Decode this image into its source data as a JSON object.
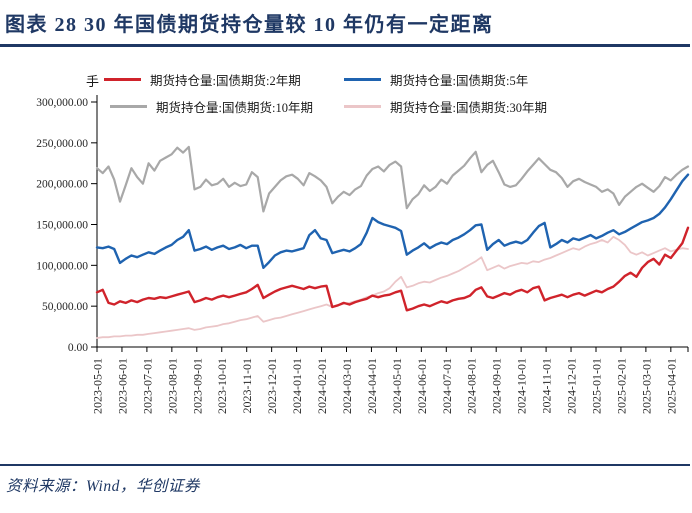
{
  "header": {
    "title": "图表 28  30 年国债期货持仓量较 10 年仍有一定距离"
  },
  "footer": {
    "source": "资料来源：Wind，华创证券"
  },
  "chart_data": {
    "type": "line",
    "unit": "手",
    "ylim": [
      0,
      300000
    ],
    "y_ticks": [
      0,
      50000,
      100000,
      150000,
      200000,
      250000,
      300000
    ],
    "grid": false,
    "legend_position": "top",
    "x_labels": [
      "2023-05-01",
      "2023-06-01",
      "2023-07-01",
      "2023-08-01",
      "2023-09-01",
      "2023-10-01",
      "2023-11-01",
      "2023-12-01",
      "2024-01-01",
      "2024-02-01",
      "2024-03-01",
      "2024-04-01",
      "2024-05-01",
      "2024-06-01",
      "2024-07-01",
      "2024-08-01",
      "2024-09-01",
      "2024-10-01",
      "2024-11-01",
      "2024-12-01",
      "2025-01-01",
      "2025-02-01",
      "2025-03-01",
      "2025-04-01"
    ],
    "sampling": "weekly points from 2023-05-01 to 2025-04-21",
    "series": [
      {
        "name": "期货持仓量:国债期货:2年期",
        "slug": "2y",
        "color": "#D0232B",
        "width": 2.4,
        "values": [
          67000,
          70000,
          54000,
          52000,
          56000,
          54000,
          57000,
          55000,
          58000,
          60000,
          59000,
          61000,
          60000,
          62000,
          64000,
          66000,
          68000,
          55000,
          57000,
          60000,
          58000,
          61000,
          63000,
          61000,
          63000,
          65000,
          67000,
          71000,
          76000,
          60000,
          64000,
          68000,
          71000,
          73000,
          75000,
          73000,
          71000,
          74000,
          72000,
          74000,
          75000,
          49000,
          51000,
          54000,
          52000,
          55000,
          57000,
          59000,
          63000,
          61000,
          63000,
          64000,
          67000,
          69000,
          45000,
          47000,
          50000,
          52000,
          50000,
          53000,
          56000,
          54000,
          57000,
          59000,
          60000,
          63000,
          70000,
          73000,
          62000,
          60000,
          63000,
          66000,
          64000,
          68000,
          70000,
          67000,
          72000,
          74000,
          57000,
          60000,
          62000,
          64000,
          61000,
          64000,
          66000,
          63000,
          66000,
          69000,
          67000,
          71000,
          74000,
          80000,
          87000,
          91000,
          86000,
          97000,
          104000,
          108000,
          101000,
          113000,
          109000,
          118000,
          127000,
          146000
        ]
      },
      {
        "name": "期货持仓量:国债期货:5年",
        "slug": "5y",
        "color": "#1F63B0",
        "width": 2.4,
        "values": [
          122000,
          121000,
          123000,
          120000,
          103000,
          108000,
          112000,
          110000,
          113000,
          116000,
          114000,
          118000,
          122000,
          125000,
          131000,
          135000,
          143000,
          118000,
          120000,
          123000,
          119000,
          122000,
          124000,
          120000,
          122000,
          125000,
          121000,
          124000,
          124000,
          97000,
          104000,
          112000,
          116000,
          118000,
          117000,
          119000,
          121000,
          137000,
          143000,
          133000,
          131000,
          115000,
          117000,
          119000,
          117000,
          121000,
          126000,
          140000,
          158000,
          153000,
          150000,
          148000,
          146000,
          142000,
          113000,
          118000,
          122000,
          127000,
          121000,
          125000,
          128000,
          126000,
          131000,
          134000,
          138000,
          143000,
          149000,
          150000,
          119000,
          126000,
          131000,
          124000,
          127000,
          129000,
          127000,
          131000,
          140000,
          148000,
          152000,
          122000,
          126000,
          131000,
          128000,
          133000,
          131000,
          134000,
          137000,
          133000,
          136000,
          140000,
          143000,
          138000,
          141000,
          145000,
          149000,
          153000,
          155000,
          158000,
          163000,
          171000,
          181000,
          192000,
          203000,
          211000
        ]
      },
      {
        "name": "期货持仓量:国债期货:10年期",
        "slug": "10y",
        "color": "#A8A8A8",
        "width": 2.2,
        "values": [
          219000,
          213000,
          221000,
          205000,
          178000,
          198000,
          219000,
          208000,
          200000,
          225000,
          216000,
          228000,
          232000,
          236000,
          244000,
          238000,
          245000,
          193000,
          196000,
          205000,
          198000,
          200000,
          206000,
          196000,
          201000,
          197000,
          199000,
          214000,
          208000,
          166000,
          188000,
          196000,
          204000,
          209000,
          211000,
          206000,
          198000,
          213000,
          209000,
          204000,
          196000,
          176000,
          184000,
          190000,
          186000,
          193000,
          197000,
          210000,
          218000,
          221000,
          215000,
          223000,
          227000,
          221000,
          170000,
          181000,
          187000,
          198000,
          191000,
          196000,
          205000,
          200000,
          210000,
          216000,
          222000,
          231000,
          239000,
          214000,
          223000,
          228000,
          214000,
          199000,
          196000,
          198000,
          206000,
          215000,
          223000,
          231000,
          224000,
          217000,
          214000,
          207000,
          196000,
          203000,
          206000,
          202000,
          199000,
          196000,
          190000,
          193000,
          188000,
          174000,
          184000,
          190000,
          196000,
          200000,
          195000,
          190000,
          197000,
          208000,
          204000,
          211000,
          217000,
          221000
        ]
      },
      {
        "name": "期货持仓量:国债期货:30年期",
        "slug": "30y",
        "color": "#EBC6C8",
        "width": 1.8,
        "values": [
          11000,
          12000,
          12000,
          13000,
          13000,
          14000,
          14000,
          15000,
          15000,
          16000,
          17000,
          18000,
          19000,
          20000,
          21000,
          22000,
          23000,
          21000,
          22000,
          24000,
          25000,
          26000,
          28000,
          29000,
          31000,
          33000,
          34000,
          36000,
          38000,
          31000,
          33000,
          35000,
          36000,
          38000,
          40000,
          42000,
          44000,
          46000,
          48000,
          50000,
          52000,
          49000,
          51000,
          53000,
          54000,
          56000,
          58000,
          61000,
          63000,
          66000,
          68000,
          72000,
          80000,
          86000,
          73000,
          75000,
          78000,
          80000,
          79000,
          82000,
          85000,
          87000,
          90000,
          93000,
          97000,
          101000,
          105000,
          110000,
          94000,
          97000,
          100000,
          96000,
          99000,
          101000,
          103000,
          102000,
          105000,
          104000,
          107000,
          109000,
          112000,
          115000,
          118000,
          121000,
          119000,
          123000,
          126000,
          128000,
          131000,
          128000,
          135000,
          131000,
          125000,
          116000,
          113000,
          116000,
          112000,
          115000,
          118000,
          121000,
          117000,
          119000,
          121000,
          120000
        ]
      }
    ]
  }
}
